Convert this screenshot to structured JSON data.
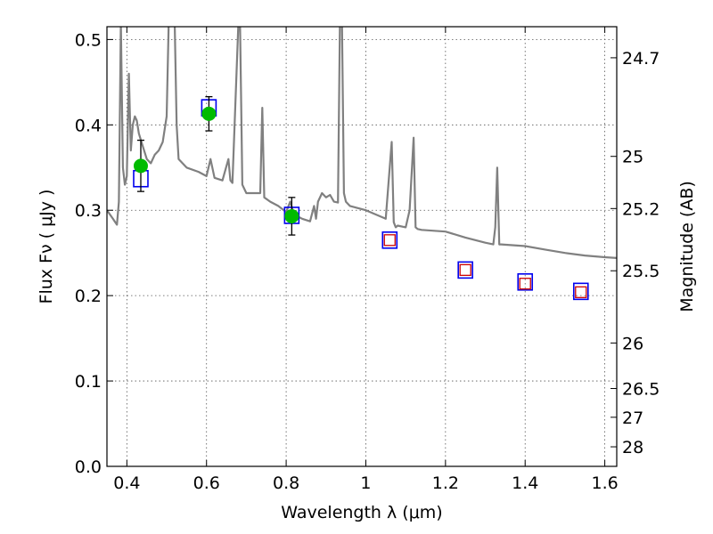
{
  "chart_data": {
    "type": "scatter",
    "xlabel": "Wavelength  λ (μm)",
    "ylabel": "Flux  Fν  ( μJy )",
    "ylabel_right": "Magnitude (AB)",
    "xlim": [
      0.35,
      1.63
    ],
    "ylim": [
      0.0,
      0.515
    ],
    "grid": true,
    "x_ticks": [
      0.4,
      0.6,
      0.8,
      1.0,
      1.2,
      1.4,
      1.6
    ],
    "x_tick_labels": [
      "0.4",
      "0.6",
      "0.8",
      "1",
      "1.2",
      "1.4",
      "1.6"
    ],
    "y_ticks": [
      0.0,
      0.1,
      0.2,
      0.3,
      0.4,
      0.5
    ],
    "y_tick_labels": [
      "0.0",
      "0.1",
      "0.2",
      "0.3",
      "0.4",
      "0.5"
    ],
    "right_axis_ticks": [
      {
        "label": "24.7",
        "flux": 0.4786
      },
      {
        "label": "25",
        "flux": 0.3631
      },
      {
        "label": "25.2",
        "flux": 0.302
      },
      {
        "label": "25.5",
        "flux": 0.2291
      },
      {
        "label": "26",
        "flux": 0.1445
      },
      {
        "label": "26.5",
        "flux": 0.0912
      },
      {
        "label": "27",
        "flux": 0.0575
      },
      {
        "label": "28",
        "flux": 0.0229
      }
    ],
    "colors": {
      "model": "#808080",
      "observed": "#00bb00",
      "errorbar": "#000000",
      "model_box": "#0000ee",
      "prediction": "#cc0000"
    },
    "series": [
      {
        "kind": "model-spectrum",
        "x": [
          0.35,
          0.365,
          0.375,
          0.38,
          0.385,
          0.39,
          0.395,
          0.4,
          0.405,
          0.41,
          0.415,
          0.42,
          0.425,
          0.43,
          0.44,
          0.45,
          0.46,
          0.47,
          0.48,
          0.49,
          0.5,
          0.505,
          0.51,
          0.515,
          0.52,
          0.525,
          0.53,
          0.55,
          0.58,
          0.6,
          0.61,
          0.62,
          0.64,
          0.655,
          0.66,
          0.665,
          0.68,
          0.684,
          0.69,
          0.7,
          0.72,
          0.735,
          0.74,
          0.745,
          0.76,
          0.78,
          0.8,
          0.81,
          0.82,
          0.84,
          0.86,
          0.87,
          0.875,
          0.88,
          0.89,
          0.9,
          0.91,
          0.92,
          0.93,
          0.935,
          0.94,
          0.945,
          0.95,
          0.96,
          1.0,
          1.05,
          1.065,
          1.07,
          1.075,
          1.08,
          1.1,
          1.11,
          1.12,
          1.125,
          1.13,
          1.14,
          1.2,
          1.25,
          1.3,
          1.32,
          1.325,
          1.33,
          1.335,
          1.34,
          1.4,
          1.45,
          1.5,
          1.55,
          1.6,
          1.63
        ],
        "y": [
          0.3,
          0.29,
          0.283,
          0.31,
          0.52,
          0.35,
          0.33,
          0.34,
          0.46,
          0.37,
          0.4,
          0.41,
          0.405,
          0.39,
          0.375,
          0.36,
          0.355,
          0.365,
          0.37,
          0.38,
          0.41,
          0.52,
          0.52,
          0.52,
          0.52,
          0.4,
          0.36,
          0.35,
          0.345,
          0.34,
          0.36,
          0.338,
          0.335,
          0.36,
          0.335,
          0.332,
          0.52,
          0.52,
          0.33,
          0.32,
          0.32,
          0.32,
          0.42,
          0.315,
          0.31,
          0.305,
          0.298,
          0.31,
          0.295,
          0.29,
          0.287,
          0.305,
          0.29,
          0.31,
          0.32,
          0.315,
          0.318,
          0.31,
          0.309,
          0.52,
          0.52,
          0.32,
          0.31,
          0.305,
          0.3,
          0.29,
          0.38,
          0.286,
          0.28,
          0.282,
          0.28,
          0.3,
          0.385,
          0.28,
          0.278,
          0.277,
          0.275,
          0.268,
          0.262,
          0.26,
          0.28,
          0.35,
          0.26,
          0.26,
          0.258,
          0.254,
          0.25,
          0.247,
          0.245,
          0.244
        ]
      },
      {
        "kind": "observed-photometry",
        "x": [
          0.435,
          0.606,
          0.814
        ],
        "y": [
          0.352,
          0.413,
          0.293
        ],
        "yerr": [
          0.03,
          0.02,
          0.022
        ]
      },
      {
        "kind": "model-photometry",
        "x": [
          0.435,
          0.606,
          0.814,
          1.06,
          1.25,
          1.4,
          1.54
        ],
        "y": [
          0.337,
          0.42,
          0.294,
          0.265,
          0.23,
          0.216,
          0.205
        ]
      },
      {
        "kind": "predicted-photometry",
        "x": [
          1.06,
          1.25,
          1.4,
          1.54
        ],
        "y": [
          0.265,
          0.23,
          0.214,
          0.204
        ]
      }
    ]
  }
}
